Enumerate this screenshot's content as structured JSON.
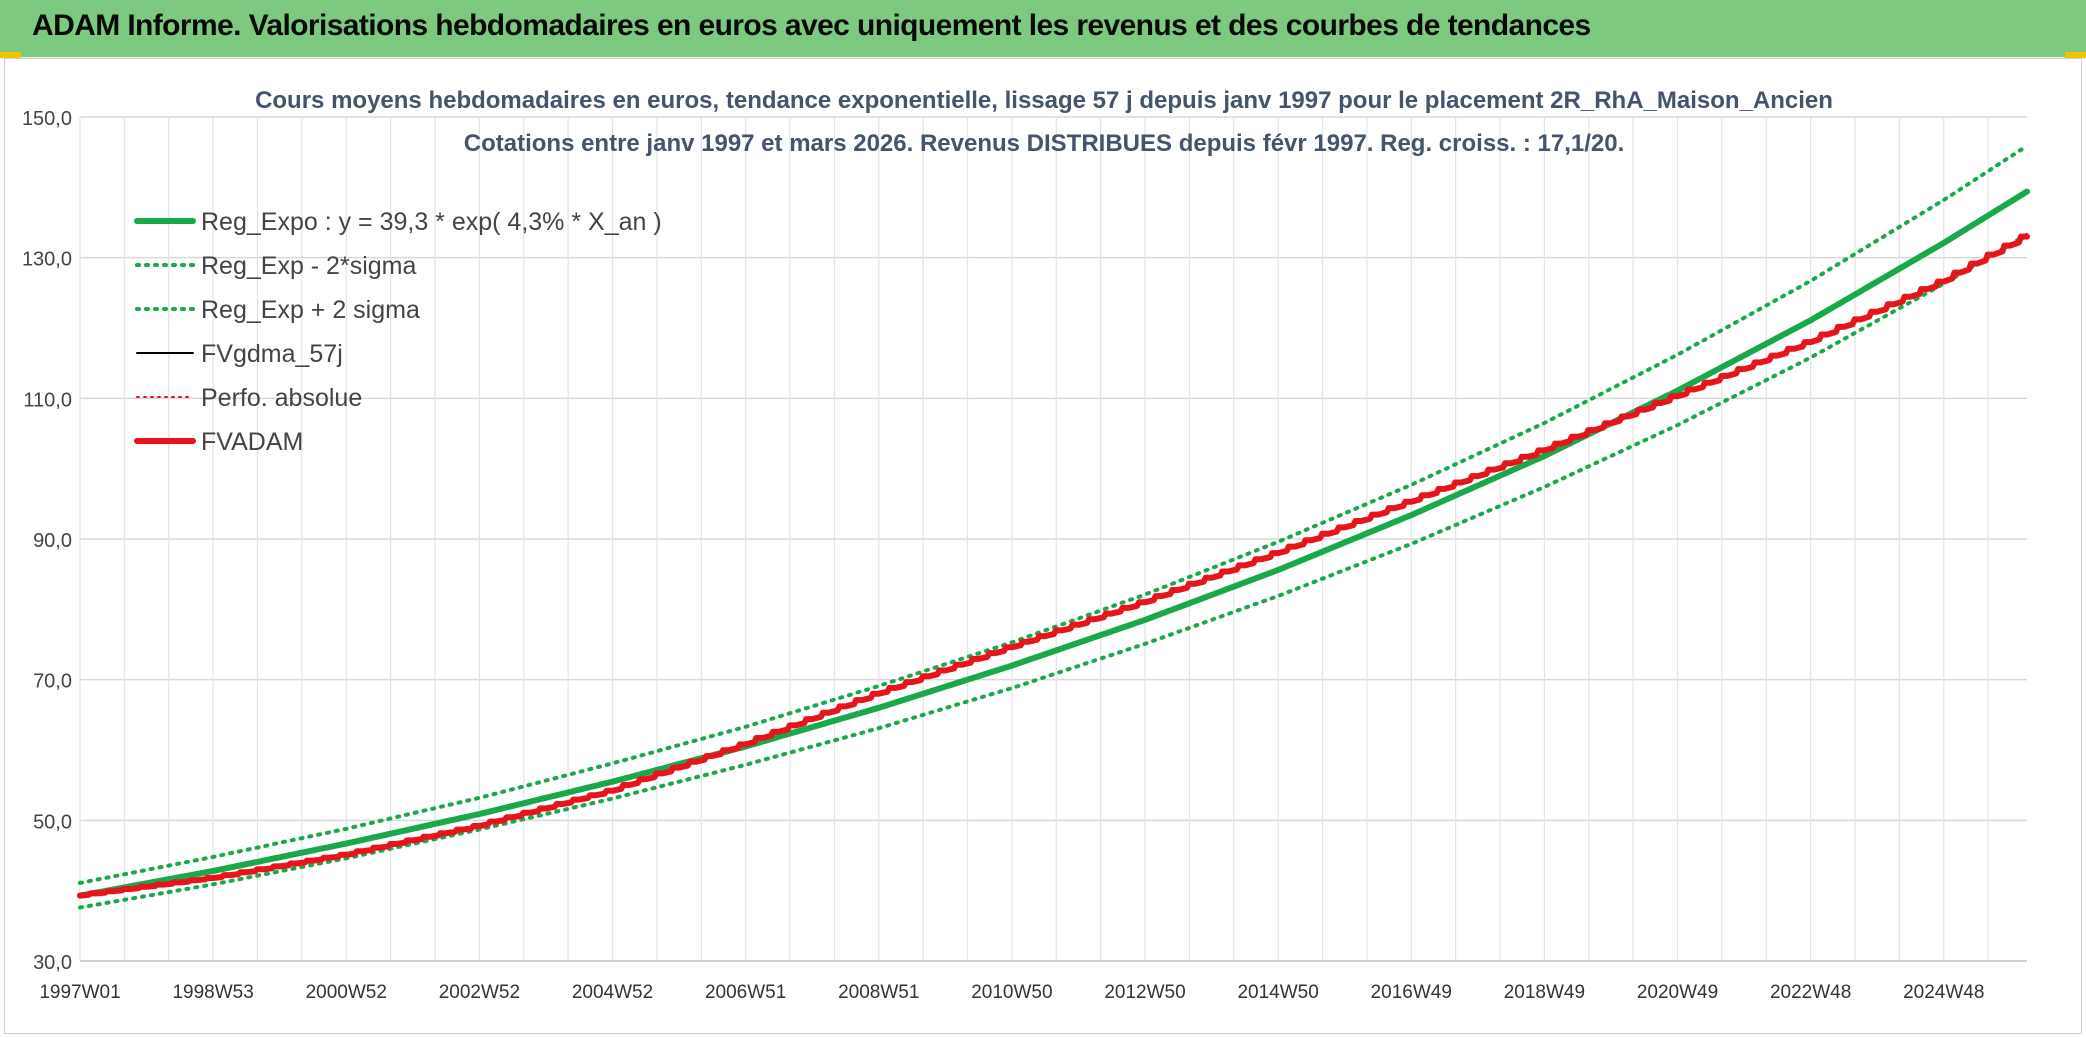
{
  "banner": {
    "title": "ADAM Informe. Valorisations hebdomadaires en euros avec uniquement les revenus et des courbes de tendances",
    "color": "#7dc97f"
  },
  "chart_data": {
    "type": "line",
    "title": "Cours moyens hebdomadaires en euros, tendance exponentielle, lissage 57 j depuis janv 1997 pour le placement 2R_RhA_Maison_Ancien",
    "subtitle": "Cotations entre janv 1997 et mars 2026. Revenus DISTRIBUES depuis févr 1997. Reg. croiss. : 17,1/20.",
    "xlabel": "",
    "ylabel": "",
    "ylim": [
      30,
      150
    ],
    "y_ticks": [
      "30,0",
      "50,0",
      "70,0",
      "90,0",
      "110,0",
      "130,0",
      "150,0"
    ],
    "x_range": [
      1997.0,
      2026.25
    ],
    "x_ticks": [
      {
        "label": "1997W01",
        "year": 1997.0
      },
      {
        "label": "1998W53",
        "year": 1999.0
      },
      {
        "label": "2000W52",
        "year": 2001.0
      },
      {
        "label": "2002W52",
        "year": 2003.0
      },
      {
        "label": "2004W52",
        "year": 2005.0
      },
      {
        "label": "2006W51",
        "year": 2007.0
      },
      {
        "label": "2008W51",
        "year": 2009.0
      },
      {
        "label": "2010W50",
        "year": 2011.0
      },
      {
        "label": "2012W50",
        "year": 2013.0
      },
      {
        "label": "2014W50",
        "year": 2015.0
      },
      {
        "label": "2016W49",
        "year": 2017.0
      },
      {
        "label": "2018W49",
        "year": 2019.0
      },
      {
        "label": "2020W49",
        "year": 2021.0
      },
      {
        "label": "2022W48",
        "year": 2023.0
      },
      {
        "label": "2024W48",
        "year": 2025.0
      }
    ],
    "grid": true,
    "legend_position": "top-left",
    "series": [
      {
        "name": "Reg_Expo : y = 39,3 * exp( 4,3% *  X_an )",
        "color": "#19a84a",
        "style": "solid-thick",
        "x": [
          1997,
          1999,
          2001,
          2003,
          2005,
          2007,
          2009,
          2011,
          2013,
          2015,
          2017,
          2019,
          2021,
          2023,
          2025,
          2026.25
        ],
        "values": [
          39.3,
          42.8,
          46.7,
          50.9,
          55.5,
          60.5,
          66.0,
          72.0,
          78.5,
          85.6,
          93.4,
          101.8,
          111.1,
          121.1,
          132.1,
          139.4
        ]
      },
      {
        "name": "Reg_Exp - 2*sigma",
        "color": "#19a84a",
        "style": "dotted",
        "x": [
          1997,
          1999,
          2001,
          2003,
          2005,
          2007,
          2009,
          2011,
          2013,
          2015,
          2017,
          2019,
          2021,
          2023,
          2025,
          2026.25
        ],
        "values": [
          37.6,
          40.9,
          44.6,
          48.7,
          53.1,
          57.9,
          63.1,
          68.8,
          75.1,
          81.9,
          89.3,
          97.4,
          106.2,
          115.8,
          126.3,
          133.3
        ]
      },
      {
        "name": "Reg_Exp + 2 sigma",
        "color": "#19a84a",
        "style": "dotted",
        "x": [
          1997,
          1999,
          2001,
          2003,
          2005,
          2007,
          2009,
          2011,
          2013,
          2015,
          2017,
          2019,
          2021,
          2023,
          2025,
          2026.25
        ],
        "values": [
          41.1,
          44.8,
          48.8,
          53.2,
          58.1,
          63.3,
          69.1,
          75.3,
          82.1,
          89.6,
          97.7,
          106.5,
          116.2,
          126.7,
          138.2,
          145.9
        ]
      },
      {
        "name": "FVgdma_57j",
        "color": "#000000",
        "style": "solid",
        "x": [
          1997,
          1999,
          2001,
          2003,
          2005,
          2007,
          2009,
          2011,
          2013,
          2015,
          2017,
          2019,
          2021,
          2023,
          2025,
          2026.25
        ],
        "values": [
          39.3,
          41.8,
          45.1,
          49.2,
          54.2,
          60.8,
          68.0,
          74.6,
          81.0,
          88.0,
          95.3,
          102.6,
          110.3,
          118.0,
          126.6,
          133.0
        ]
      },
      {
        "name": "Perfo. absolue",
        "color": "#e8141b",
        "style": "dotted-thin",
        "x": [
          1997,
          1999,
          2001,
          2003,
          2005,
          2007,
          2009,
          2011,
          2013,
          2015,
          2017,
          2019,
          2021,
          2023,
          2025,
          2026.25
        ],
        "values": [
          39.3,
          41.8,
          45.1,
          49.2,
          54.2,
          60.8,
          68.0,
          74.6,
          81.0,
          88.0,
          95.3,
          102.6,
          110.3,
          118.0,
          126.6,
          133.0
        ]
      },
      {
        "name": "FVADAM",
        "color": "#e8141b",
        "style": "solid-thick",
        "x": [
          1997,
          1999,
          2001,
          2003,
          2005,
          2007,
          2009,
          2011,
          2013,
          2015,
          2017,
          2019,
          2021,
          2023,
          2025,
          2026.25
        ],
        "values": [
          39.3,
          41.8,
          45.1,
          49.2,
          54.2,
          60.8,
          68.0,
          74.6,
          81.0,
          88.0,
          95.3,
          102.6,
          110.3,
          118.0,
          126.6,
          133.0
        ]
      }
    ]
  }
}
